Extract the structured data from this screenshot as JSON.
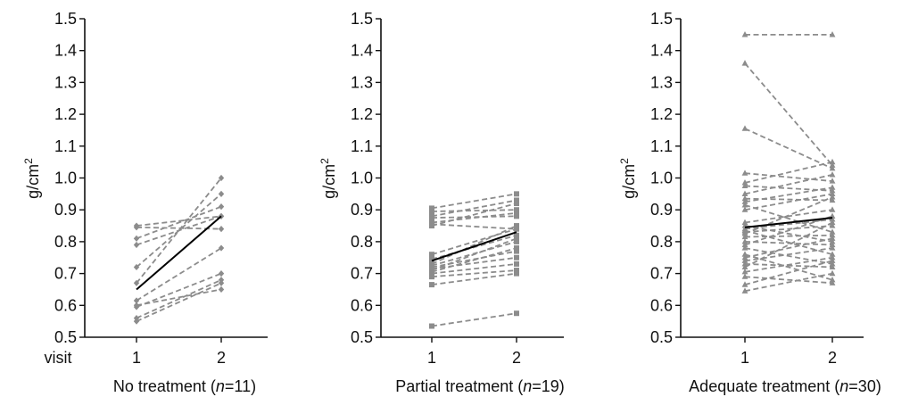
{
  "visit_label": "visit",
  "chart_data": [
    {
      "type": "line",
      "title": "No treatment (n=11)",
      "title_parts": [
        "No treatment (",
        "n",
        "=11)"
      ],
      "ylabel": "g/cm2",
      "ylabel_parts": [
        "g/cm",
        "2"
      ],
      "x": [
        1,
        2
      ],
      "x_ticks": [
        "1",
        "2"
      ],
      "ylim": [
        0.5,
        1.5
      ],
      "y_ticks": [
        "0.5",
        "0.6",
        "0.7",
        "0.8",
        "0.9",
        "1.0",
        "1.1",
        "1.2",
        "1.3",
        "1.4",
        "1.5"
      ],
      "marker": "diamond",
      "marker_color": "#8c8c8c",
      "mean_color": "#000000",
      "subjects": [
        [
          0.85,
          0.88
        ],
        [
          0.845,
          0.84
        ],
        [
          0.81,
          0.91
        ],
        [
          0.79,
          0.88
        ],
        [
          0.72,
          0.95
        ],
        [
          0.67,
          1.0
        ],
        [
          0.615,
          0.78
        ],
        [
          0.6,
          0.65
        ],
        [
          0.595,
          0.7
        ],
        [
          0.56,
          0.68
        ],
        [
          0.55,
          0.67
        ]
      ],
      "mean": [
        0.65,
        0.88
      ]
    },
    {
      "type": "line",
      "title": "Partial treatment (n=19)",
      "title_parts": [
        "Partial treatment (",
        "n",
        "=19)"
      ],
      "ylabel": "g/cm2",
      "ylabel_parts": [
        "g/cm",
        "2"
      ],
      "x": [
        1,
        2
      ],
      "x_ticks": [
        "1",
        "2"
      ],
      "ylim": [
        0.5,
        1.5
      ],
      "y_ticks": [
        "0.5",
        "0.6",
        "0.7",
        "0.8",
        "0.9",
        "1.0",
        "1.1",
        "1.2",
        "1.3",
        "1.4",
        "1.5"
      ],
      "marker": "square",
      "marker_color": "#8c8c8c",
      "mean_color": "#000000",
      "subjects": [
        [
          0.905,
          0.95
        ],
        [
          0.895,
          0.9
        ],
        [
          0.88,
          0.93
        ],
        [
          0.875,
          0.88
        ],
        [
          0.86,
          0.89
        ],
        [
          0.855,
          0.84
        ],
        [
          0.85,
          0.92
        ],
        [
          0.76,
          0.84
        ],
        [
          0.745,
          0.82
        ],
        [
          0.73,
          0.85
        ],
        [
          0.725,
          0.8
        ],
        [
          0.72,
          0.77
        ],
        [
          0.715,
          0.75
        ],
        [
          0.71,
          0.81
        ],
        [
          0.705,
          0.78
        ],
        [
          0.7,
          0.73
        ],
        [
          0.69,
          0.71
        ],
        [
          0.665,
          0.7
        ],
        [
          0.535,
          0.575
        ]
      ],
      "mean": [
        0.74,
        0.83
      ]
    },
    {
      "type": "line",
      "title": "Adequate treatment (n=30)",
      "title_parts": [
        "Adequate treatment (",
        "n",
        "=30)"
      ],
      "ylabel": "g/cm2",
      "ylabel_parts": [
        "g/cm",
        "2"
      ],
      "x": [
        1,
        2
      ],
      "x_ticks": [
        "1",
        "2"
      ],
      "ylim": [
        0.5,
        1.5
      ],
      "y_ticks": [
        "0.5",
        "0.6",
        "0.7",
        "0.8",
        "0.9",
        "1.0",
        "1.1",
        "1.2",
        "1.3",
        "1.4",
        "1.5"
      ],
      "marker": "triangle",
      "marker_color": "#8c8c8c",
      "mean_color": "#000000",
      "subjects": [
        [
          1.45,
          1.45
        ],
        [
          1.36,
          1.04
        ],
        [
          1.155,
          1.03
        ],
        [
          1.015,
          0.99
        ],
        [
          0.985,
          1.05
        ],
        [
          0.975,
          0.96
        ],
        [
          0.95,
          1.01
        ],
        [
          0.935,
          0.93
        ],
        [
          0.925,
          0.97
        ],
        [
          0.915,
          0.83
        ],
        [
          0.9,
          0.95
        ],
        [
          0.86,
          0.9
        ],
        [
          0.85,
          0.8
        ],
        [
          0.84,
          0.87
        ],
        [
          0.835,
          0.76
        ],
        [
          0.83,
          0.85
        ],
        [
          0.825,
          0.94
        ],
        [
          0.815,
          0.82
        ],
        [
          0.8,
          0.79
        ],
        [
          0.79,
          0.88
        ],
        [
          0.78,
          0.73
        ],
        [
          0.76,
          0.68
        ],
        [
          0.75,
          0.81
        ],
        [
          0.74,
          0.78
        ],
        [
          0.73,
          0.72
        ],
        [
          0.72,
          0.86
        ],
        [
          0.705,
          0.75
        ],
        [
          0.69,
          0.67
        ],
        [
          0.665,
          0.74
        ],
        [
          0.645,
          0.7
        ]
      ],
      "mean": [
        0.845,
        0.875
      ]
    }
  ]
}
